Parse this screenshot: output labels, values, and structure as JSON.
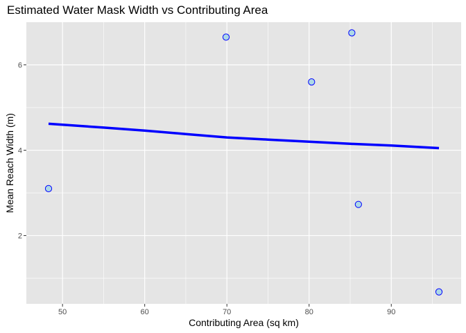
{
  "chart_data": {
    "type": "scatter",
    "title": "Estimated Water Mask Width vs Contributing Area",
    "xlabel": "Contributing Area (sq km)",
    "ylabel": "Mean Reach Width (m)",
    "xlim": [
      45.6,
      98.5
    ],
    "ylim": [
      0.4,
      7.0
    ],
    "xticks": [
      50,
      60,
      70,
      80,
      90
    ],
    "yticks": [
      2,
      4,
      6
    ],
    "x_tick_labels": [
      "50",
      "60",
      "70",
      "80",
      "90"
    ],
    "y_tick_labels": [
      "2",
      "4",
      "6"
    ],
    "grid": true,
    "points": [
      {
        "x": 48.3,
        "y": 3.1
      },
      {
        "x": 69.9,
        "y": 6.65
      },
      {
        "x": 80.3,
        "y": 5.6
      },
      {
        "x": 85.2,
        "y": 6.75
      },
      {
        "x": 86.0,
        "y": 2.73
      },
      {
        "x": 95.8,
        "y": 0.68
      }
    ],
    "trend_line": {
      "x": [
        48.3,
        55,
        60,
        65,
        70,
        75,
        80,
        85,
        90,
        95.8
      ],
      "y": [
        4.62,
        4.53,
        4.46,
        4.38,
        4.3,
        4.25,
        4.2,
        4.15,
        4.11,
        4.05
      ]
    },
    "colors": {
      "panel_background": "#e5e5e5",
      "grid": "#ffffff",
      "point_fill": "#add8e6",
      "point_stroke": "#0000ff",
      "trend_line": "#0000ff"
    }
  }
}
